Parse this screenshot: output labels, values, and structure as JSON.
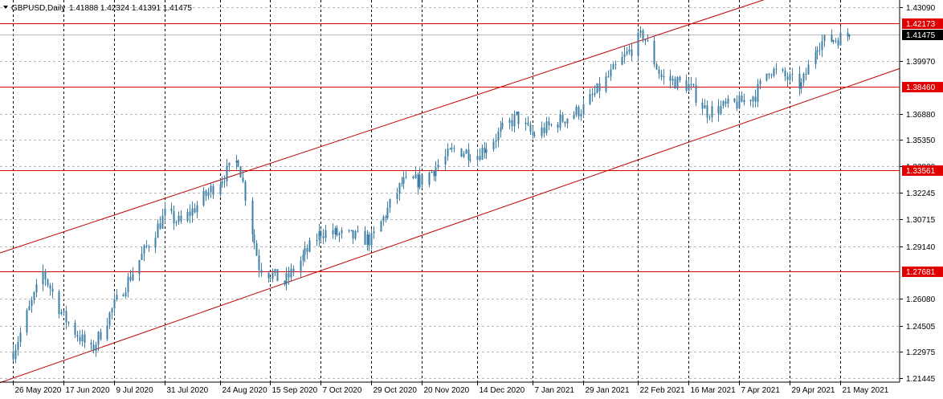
{
  "header": {
    "symbol": "GBPUSD,Daily",
    "ohlc": "1.41888 1.42324 1.41391 1.41475"
  },
  "colors": {
    "candle": "#3f7fa6",
    "level_line": "#e00000",
    "channel_line": "#c00000",
    "grid": "#b9b9b9",
    "vgrid": "#000000",
    "label_bg": "#e00000",
    "current_bg": "#000000"
  },
  "chart_data": {
    "type": "candlestick",
    "ylim": [
      1.2144,
      1.4325
    ],
    "y_ticks": [
      "1.43090",
      "1.39970",
      "1.36880",
      "1.35350",
      "1.33830",
      "1.32245",
      "1.30715",
      "1.29140",
      "1.26080",
      "1.24505",
      "1.22975",
      "1.21445"
    ],
    "x_ticks": [
      "26 May 2020",
      "17 Jun 2020",
      "9 Jul 2020",
      "31 Jul 2020",
      "24 Aug 2020",
      "15 Sep 2020",
      "7 Oct 2020",
      "29 Oct 2020",
      "20 Nov 2020",
      "14 Dec 2020",
      "7 Jan 2021",
      "29 Jan 2021",
      "22 Feb 2021",
      "16 Mar 2021",
      "7 Apr 2021",
      "29 Apr 2021",
      "21 May 2021"
    ],
    "levels": [
      {
        "label": "1.42173",
        "value": 1.42173
      },
      {
        "label": "1.38460",
        "value": 1.3846
      },
      {
        "label": "1.33561",
        "value": 1.33561
      },
      {
        "label": "1.27681",
        "value": 1.27681
      }
    ],
    "current_price": {
      "label": "1.41475",
      "value": 1.41475
    },
    "anchors": [
      {
        "date": "26 May 2020",
        "price": 1.23
      },
      {
        "date": "8 Jun 2020",
        "price": 1.276
      },
      {
        "date": "17 Jun 2020",
        "price": 1.25
      },
      {
        "date": "29 Jun 2020",
        "price": 1.23
      },
      {
        "date": "9 Jul 2020",
        "price": 1.257
      },
      {
        "date": "31 Jul 2020",
        "price": 1.31
      },
      {
        "date": "7 Aug 2020",
        "price": 1.305
      },
      {
        "date": "1 Sep 2020",
        "price": 1.342
      },
      {
        "date": "10 Sep 2020",
        "price": 1.28
      },
      {
        "date": "21 Sep 2020",
        "price": 1.27
      },
      {
        "date": "7 Oct 2020",
        "price": 1.3
      },
      {
        "date": "29 Oct 2020",
        "price": 1.295
      },
      {
        "date": "11 Nov 2020",
        "price": 1.328
      },
      {
        "date": "20 Nov 2020",
        "price": 1.33
      },
      {
        "date": "4 Dec 2020",
        "price": 1.348
      },
      {
        "date": "14 Dec 2020",
        "price": 1.345
      },
      {
        "date": "31 Dec 2020",
        "price": 1.367
      },
      {
        "date": "7 Jan 2021",
        "price": 1.356
      },
      {
        "date": "29 Jan 2021",
        "price": 1.372
      },
      {
        "date": "24 Feb 2021",
        "price": 1.415
      },
      {
        "date": "4 Mar 2021",
        "price": 1.39
      },
      {
        "date": "16 Mar 2021",
        "price": 1.385
      },
      {
        "date": "24 Mar 2021",
        "price": 1.37
      },
      {
        "date": "7 Apr 2021",
        "price": 1.375
      },
      {
        "date": "14 Apr 2021",
        "price": 1.38
      },
      {
        "date": "20 Apr 2021",
        "price": 1.395
      },
      {
        "date": "4 May 2021",
        "price": 1.385
      },
      {
        "date": "11 May 2021",
        "price": 1.41
      },
      {
        "date": "25 May 2021",
        "price": 1.4147
      }
    ],
    "channel": [
      {
        "name": "upper",
        "from": {
          "date": "26 May 2020",
          "price": 1.29
        },
        "to": {
          "date": "21 May 2021",
          "price": 1.45
        }
      },
      {
        "name": "lower",
        "from": {
          "date": "26 May 2020",
          "price": 1.2144
        },
        "to": {
          "date": "21 May 2021",
          "price": 1.383
        }
      }
    ],
    "grid": true
  }
}
